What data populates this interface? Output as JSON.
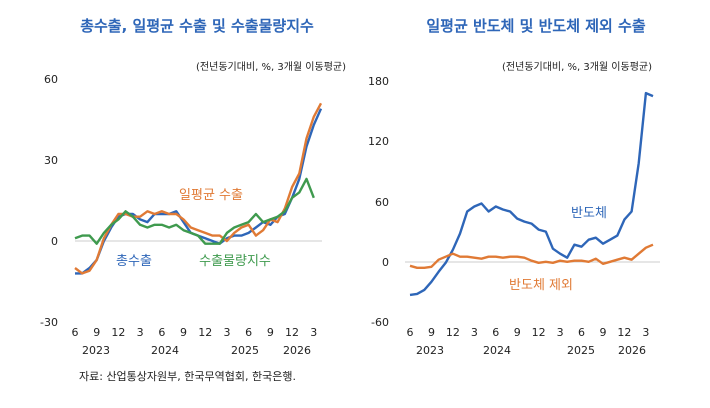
{
  "source": "자료: 산업통상자원부, 한국무역협회, 한국은행.",
  "chart_data": [
    {
      "type": "line",
      "title": "총수출, 일평균 수출 및 수출물량지수",
      "unit_note": "(전년동기대비, %, 3개월 이동평균)",
      "ylim": [
        -30,
        60
      ],
      "yticks": [
        "60",
        "30",
        "0",
        "-30"
      ],
      "x_tick_labels": [
        "6",
        "9",
        "12",
        "3",
        "6",
        "9",
        "12",
        "3",
        "6",
        "9",
        "12",
        "3"
      ],
      "year_labels": [
        "2023",
        "2024",
        "2025",
        "2026"
      ],
      "x": [
        "2023-06",
        "2023-07",
        "2023-08",
        "2023-09",
        "2023-10",
        "2023-11",
        "2023-12",
        "2024-01",
        "2024-02",
        "2024-03",
        "2024-04",
        "2024-05",
        "2024-06",
        "2024-07",
        "2024-08",
        "2024-09",
        "2024-10",
        "2024-11",
        "2024-12",
        "2025-01",
        "2025-02",
        "2025-03",
        "2025-04",
        "2025-05",
        "2025-06",
        "2025-07",
        "2025-08",
        "2025-09",
        "2025-10",
        "2025-11",
        "2025-12",
        "2026-01",
        "2026-02",
        "2026-03",
        "2026-04"
      ],
      "series": [
        {
          "name": "총수출",
          "color": "#2e66b8",
          "values": [
            -12,
            -12,
            -10,
            -7,
            0,
            5,
            9,
            10,
            10,
            8,
            7,
            10,
            10,
            10,
            11,
            7,
            3,
            2,
            1,
            0,
            -1,
            1,
            2,
            2,
            3,
            5,
            7,
            6,
            9,
            10,
            16,
            23,
            35,
            43,
            49
          ]
        },
        {
          "name": "일평균 수출",
          "color": "#e07a35",
          "values": [
            -10,
            -12,
            -11,
            -7,
            1,
            6,
            10,
            10,
            9,
            9,
            11,
            10,
            11,
            10,
            10,
            8,
            5,
            4,
            3,
            2,
            2,
            0,
            3,
            5,
            6,
            2,
            4,
            8,
            7,
            12,
            20,
            25,
            38,
            46,
            51
          ]
        },
        {
          "name": "수출물량지수",
          "color": "#3f9a4e",
          "values": [
            1,
            2,
            2,
            -1,
            3,
            6,
            8,
            11,
            9,
            6,
            5,
            6,
            6,
            5,
            6,
            4,
            3,
            2,
            -1,
            -1,
            -1,
            3,
            5,
            6,
            7,
            10,
            7,
            8,
            9,
            11,
            16,
            18,
            23,
            16,
            null
          ]
        }
      ]
    },
    {
      "type": "line",
      "title": "일평균 반도체 및 반도체 제외 수출",
      "unit_note": "(전년동기대비, %, 3개월 이동평균)",
      "ylim": [
        -60,
        180
      ],
      "yticks": [
        "180",
        "120",
        "60",
        "0",
        "-60"
      ],
      "x_tick_labels": [
        "6",
        "9",
        "12",
        "3",
        "6",
        "9",
        "12",
        "3",
        "6",
        "9",
        "12",
        "3"
      ],
      "year_labels": [
        "2023",
        "2024",
        "2025",
        "2026"
      ],
      "x": [
        "2023-06",
        "2023-07",
        "2023-08",
        "2023-09",
        "2023-10",
        "2023-11",
        "2023-12",
        "2024-01",
        "2024-02",
        "2024-03",
        "2024-04",
        "2024-05",
        "2024-06",
        "2024-07",
        "2024-08",
        "2024-09",
        "2024-10",
        "2024-11",
        "2024-12",
        "2025-01",
        "2025-02",
        "2025-03",
        "2025-04",
        "2025-05",
        "2025-06",
        "2025-07",
        "2025-08",
        "2025-09",
        "2025-10",
        "2025-11",
        "2025-12",
        "2026-01",
        "2026-02",
        "2026-03",
        "2026-04"
      ],
      "series": [
        {
          "name": "반도체",
          "color": "#2e66b8",
          "values": [
            -33,
            -32,
            -28,
            -20,
            -10,
            -1,
            12,
            28,
            50,
            55,
            58,
            50,
            55,
            52,
            50,
            43,
            40,
            38,
            32,
            30,
            13,
            8,
            4,
            17,
            15,
            22,
            24,
            18,
            22,
            26,
            42,
            50,
            98,
            168,
            165
          ]
        },
        {
          "name": "반도체 제외",
          "color": "#e07a35",
          "values": [
            -4,
            -6,
            -6,
            -5,
            2,
            5,
            8,
            5,
            5,
            4,
            3,
            5,
            5,
            4,
            5,
            5,
            4,
            1,
            -1,
            0,
            -1,
            1,
            0,
            1,
            1,
            0,
            3,
            -2,
            0,
            2,
            4,
            2,
            8,
            14,
            17
          ]
        }
      ]
    }
  ]
}
